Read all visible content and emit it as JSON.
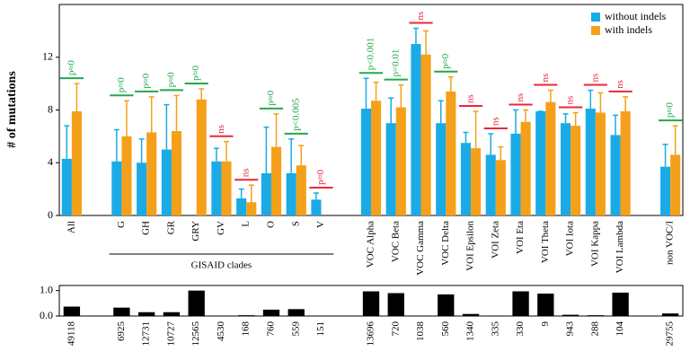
{
  "chart_data": [
    {
      "type": "bar",
      "y_label": "# of mutations",
      "group_label": "GISAID clades",
      "categories": [
        "All",
        null,
        "G",
        "GH",
        "GR",
        "GRY",
        "GV",
        "L",
        "O",
        "S",
        "V",
        null,
        "VOC Alpha",
        "VOC Beta",
        "VOC Gamma",
        "VOC Delta",
        "VOI Epsilon",
        "VOI Zeta",
        "VOI Eta",
        "VOI Theta",
        "VOI Iota",
        "VOI Kappa",
        "VOI Lambda",
        null,
        "non VOC/I"
      ],
      "series": [
        {
          "name": "without indels",
          "color": "#1aabe6",
          "values": [
            4.3,
            null,
            4.1,
            4.0,
            5.0,
            null,
            4.1,
            1.3,
            3.2,
            3.2,
            1.2,
            null,
            8.1,
            7.0,
            13.0,
            7.0,
            5.5,
            4.6,
            6.2,
            7.9,
            7.0,
            8.1,
            6.1,
            null,
            3.7
          ],
          "errors": [
            2.5,
            null,
            2.4,
            1.8,
            3.4,
            null,
            1.0,
            0.7,
            3.5,
            2.6,
            0.5,
            null,
            2.3,
            1.9,
            1.2,
            1.7,
            0.8,
            1.6,
            1.8,
            0.0,
            0.7,
            1.4,
            1.5,
            null,
            1.7
          ]
        },
        {
          "name": "with indels",
          "color": "#f5a01a",
          "values": [
            7.9,
            null,
            6.0,
            6.3,
            6.4,
            8.8,
            4.1,
            1.0,
            5.2,
            3.8,
            null,
            null,
            8.7,
            8.2,
            12.2,
            9.4,
            5.1,
            4.2,
            7.1,
            8.6,
            6.8,
            7.8,
            7.9,
            null,
            4.6
          ],
          "errors": [
            2.1,
            null,
            2.7,
            2.7,
            2.7,
            0.8,
            1.5,
            1.3,
            2.5,
            1.5,
            null,
            null,
            1.4,
            1.7,
            1.8,
            1.1,
            2.8,
            1.0,
            0.9,
            0.9,
            1.0,
            1.5,
            1.1,
            null,
            2.2
          ]
        }
      ],
      "annotations": [
        {
          "text": "p≈0",
          "color": "#22a84a"
        },
        null,
        {
          "text": "p≈0",
          "color": "#22a84a"
        },
        {
          "text": "p≈0",
          "color": "#22a84a"
        },
        {
          "text": "p≈0",
          "color": "#22a84a"
        },
        {
          "text": "p≈0",
          "color": "#22a84a"
        },
        {
          "text": "ns",
          "color": "#e8283a"
        },
        {
          "text": "ns",
          "color": "#e8283a"
        },
        {
          "text": "p≈0",
          "color": "#22a84a"
        },
        {
          "text": "p<0.005",
          "color": "#22a84a"
        },
        {
          "text": "p≈0",
          "color": "#e8283a"
        },
        null,
        {
          "text": "p<0.001",
          "color": "#22a84a"
        },
        {
          "text": "p=0.01",
          "color": "#22a84a"
        },
        {
          "text": "ns",
          "color": "#e8283a"
        },
        {
          "text": "p≈0",
          "color": "#22a84a"
        },
        {
          "text": "ns",
          "color": "#e8283a"
        },
        {
          "text": "ns",
          "color": "#e8283a"
        },
        {
          "text": "ns",
          "color": "#e8283a"
        },
        {
          "text": "ns",
          "color": "#e8283a"
        },
        {
          "text": "ns",
          "color": "#e8283a"
        },
        {
          "text": "ns",
          "color": "#e8283a"
        },
        {
          "text": "ns",
          "color": "#e8283a"
        },
        null,
        {
          "text": "p≈0",
          "color": "#22a84a"
        }
      ],
      "ylim": [
        0,
        16
      ],
      "yticks": [
        0,
        4,
        8,
        12
      ],
      "legend": "top-right"
    },
    {
      "type": "bar",
      "color": "#000000",
      "categories": [
        "49118",
        null,
        "6925",
        "12731",
        "10727",
        "12565",
        "4530",
        "168",
        "760",
        "559",
        "151",
        null,
        "13696",
        "720",
        "1038",
        "560",
        "1340",
        "335",
        "330",
        "9",
        "943",
        "288",
        "104",
        null,
        "29755"
      ],
      "values": [
        0.37,
        null,
        0.33,
        0.15,
        0.15,
        1.0,
        0,
        0.03,
        0.25,
        0.27,
        0,
        null,
        0.97,
        0.9,
        0,
        0.85,
        0.08,
        0,
        0.97,
        0.88,
        0.05,
        0.03,
        0.92,
        null,
        0.1
      ],
      "ylim": [
        0,
        1.2
      ],
      "yticks": [
        {
          "value": 0,
          "label": "0.0"
        },
        {
          "value": 1,
          "label": "1.0"
        }
      ]
    }
  ]
}
